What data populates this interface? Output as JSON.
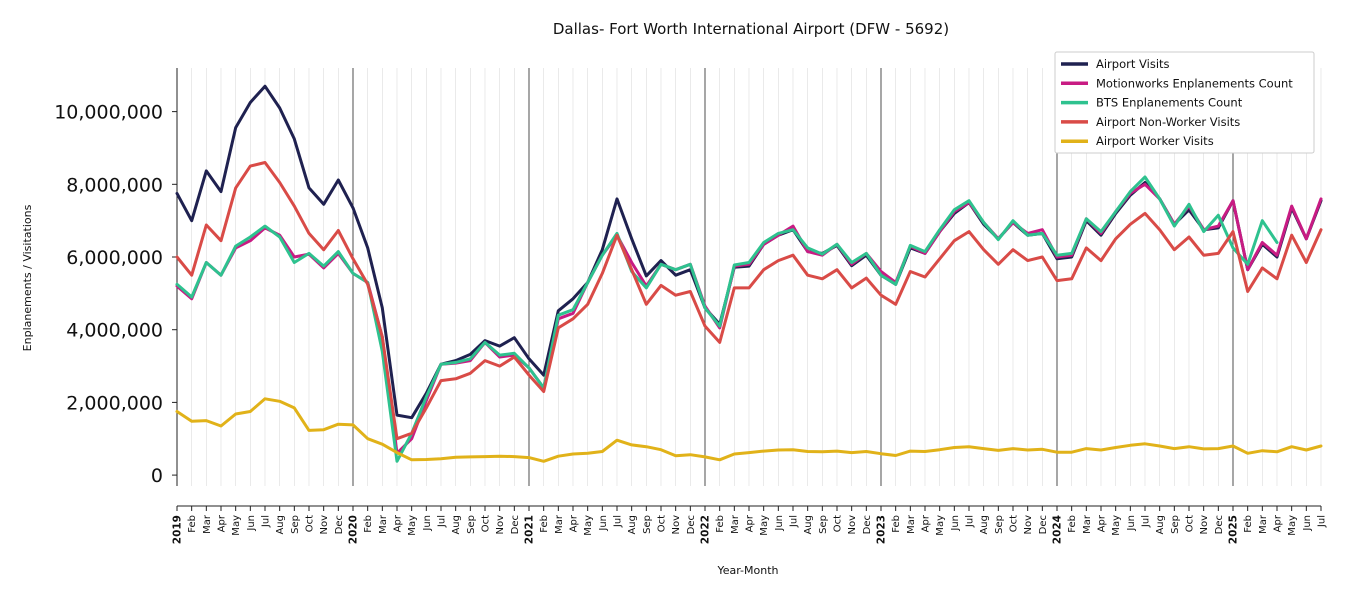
{
  "chart_data": {
    "type": "line",
    "title": "Dallas- Fort Worth International Airport (DFW - 5692)",
    "xlabel": "Year-Month",
    "ylabel": "Enplanements / Visitations",
    "ylim": [
      -300000,
      11200000
    ],
    "yticks": [
      0,
      2000000,
      4000000,
      6000000,
      8000000,
      10000000
    ],
    "ytick_labels": [
      "0",
      "2,000,000",
      "4,000,000",
      "6,000,000",
      "8,000,000",
      "10,000,000"
    ],
    "x_start": "2019-01",
    "x_end": "2025-07",
    "month_labels": [
      "",
      "Feb",
      "Mar",
      "Apr",
      "May",
      "Jun",
      "Jul",
      "Aug",
      "Sep",
      "Oct",
      "Nov",
      "Dec"
    ],
    "years": [
      "2019",
      "2020",
      "2021",
      "2022",
      "2023",
      "2024",
      "2025"
    ],
    "grid": "vertical monthly lines",
    "legend_position": "top-right",
    "series": [
      {
        "name": "Airport Visits",
        "color": "#1f2150",
        "values": [
          7750000,
          7000000,
          8370000,
          7800000,
          9560000,
          10250000,
          10700000,
          10100000,
          9250000,
          7900000,
          7450000,
          8120000,
          7350000,
          6250000,
          4600000,
          1650000,
          1580000,
          2250000,
          3050000,
          3150000,
          3320000,
          3700000,
          3550000,
          3780000,
          3200000,
          2750000,
          4520000,
          4850000,
          5300000,
          6200000,
          7600000,
          6500000,
          5480000,
          5900000,
          5500000,
          5650000,
          4600000,
          4150000,
          5720000,
          5750000,
          6350000,
          6600000,
          6750000,
          6150000,
          6100000,
          6320000,
          5760000,
          6050000,
          5500000,
          5250000,
          6250000,
          6100000,
          6700000,
          7200000,
          7500000,
          6900000,
          6500000,
          6950000,
          6600000,
          6650000,
          5950000,
          6000000,
          7000000,
          6600000,
          7200000,
          7700000,
          8050000,
          7600000,
          6900000,
          7300000,
          6750000,
          6800000,
          7550000,
          5650000,
          6350000,
          6000000,
          7350000,
          6500000,
          7550000
        ]
      },
      {
        "name": "Motionworks Enplanements Count",
        "color": "#c81b83",
        "values": [
          5200000,
          4850000,
          5850000,
          5500000,
          6250000,
          6450000,
          6800000,
          6600000,
          6000000,
          6080000,
          5700000,
          6100000,
          5550000,
          5300000,
          3800000,
          600000,
          1000000,
          2050000,
          3050000,
          3080000,
          3150000,
          3650000,
          3250000,
          3300000,
          2950000,
          2400000,
          4300000,
          4450000,
          5300000,
          6050000,
          6600000,
          5850000,
          5200000,
          5800000,
          5650000,
          5800000,
          4650000,
          4050000,
          5750000,
          5800000,
          6350000,
          6600000,
          6850000,
          6150000,
          6050000,
          6350000,
          5800000,
          6100000,
          5600000,
          5300000,
          6300000,
          6100000,
          6700000,
          7250000,
          7500000,
          6950000,
          6500000,
          6950000,
          6650000,
          6750000,
          6000000,
          6050000,
          7050000,
          6650000,
          7250000,
          7750000,
          8000000,
          7600000,
          6900000,
          7400000,
          6750000,
          6850000,
          7550000,
          5650000,
          6400000,
          6050000,
          7400000,
          6500000,
          7600000
        ]
      },
      {
        "name": "BTS Enplanements Count",
        "color": "#2ec28f",
        "values": [
          5250000,
          4900000,
          5850000,
          5500000,
          6300000,
          6550000,
          6850000,
          6550000,
          5850000,
          6100000,
          5750000,
          6150000,
          5550000,
          5300000,
          3400000,
          380000,
          1150000,
          2150000,
          3050000,
          3100000,
          3200000,
          3650000,
          3300000,
          3350000,
          2950000,
          2400000,
          4400000,
          4550000,
          5300000,
          6050000,
          6650000,
          5600000,
          5150000,
          5800000,
          5650000,
          5800000,
          4600000,
          4100000,
          5780000,
          5850000,
          6400000,
          6650000,
          6750000,
          6250000,
          6080000,
          6350000,
          5850000,
          6100000,
          5500000,
          5250000,
          6320000,
          6150000,
          6750000,
          7300000,
          7550000,
          6950000,
          6480000,
          7000000,
          6600000,
          6650000,
          6050000,
          6100000,
          7050000,
          6700000,
          7250000,
          7800000,
          8200000,
          7600000,
          6850000,
          7450000,
          6700000,
          7150000,
          6250000,
          5800000,
          7000000,
          6400000,
          null,
          null,
          null
        ]
      },
      {
        "name": "Airport Non-Worker Visits",
        "color": "#d94b47",
        "values": [
          6000000,
          5500000,
          6880000,
          6450000,
          7900000,
          8500000,
          8600000,
          8050000,
          7400000,
          6650000,
          6200000,
          6730000,
          5950000,
          5250000,
          3800000,
          1000000,
          1150000,
          1850000,
          2600000,
          2650000,
          2800000,
          3150000,
          3000000,
          3250000,
          2750000,
          2300000,
          4050000,
          4300000,
          4700000,
          5550000,
          6600000,
          5650000,
          4700000,
          5220000,
          4950000,
          5050000,
          4100000,
          3650000,
          5150000,
          5150000,
          5650000,
          5900000,
          6050000,
          5500000,
          5400000,
          5650000,
          5150000,
          5420000,
          4950000,
          4700000,
          5600000,
          5450000,
          5950000,
          6450000,
          6700000,
          6200000,
          5800000,
          6200000,
          5900000,
          6000000,
          5350000,
          5400000,
          6250000,
          5900000,
          6500000,
          6900000,
          7200000,
          6750000,
          6200000,
          6550000,
          6050000,
          6100000,
          6700000,
          5050000,
          5700000,
          5400000,
          6600000,
          5850000,
          6750000
        ]
      },
      {
        "name": "Airport Worker Visits",
        "color": "#e1b219",
        "values": [
          1750000,
          1480000,
          1500000,
          1350000,
          1680000,
          1750000,
          2100000,
          2030000,
          1850000,
          1230000,
          1250000,
          1400000,
          1380000,
          1000000,
          850000,
          620000,
          420000,
          430000,
          450000,
          490000,
          500000,
          510000,
          520000,
          510000,
          480000,
          380000,
          520000,
          580000,
          600000,
          650000,
          960000,
          830000,
          780000,
          700000,
          530000,
          560000,
          500000,
          420000,
          580000,
          620000,
          660000,
          690000,
          700000,
          650000,
          640000,
          660000,
          620000,
          650000,
          590000,
          540000,
          660000,
          650000,
          700000,
          760000,
          780000,
          730000,
          680000,
          730000,
          690000,
          710000,
          630000,
          630000,
          730000,
          690000,
          760000,
          820000,
          860000,
          800000,
          730000,
          780000,
          720000,
          730000,
          800000,
          600000,
          670000,
          640000,
          780000,
          690000,
          800000
        ]
      }
    ]
  }
}
